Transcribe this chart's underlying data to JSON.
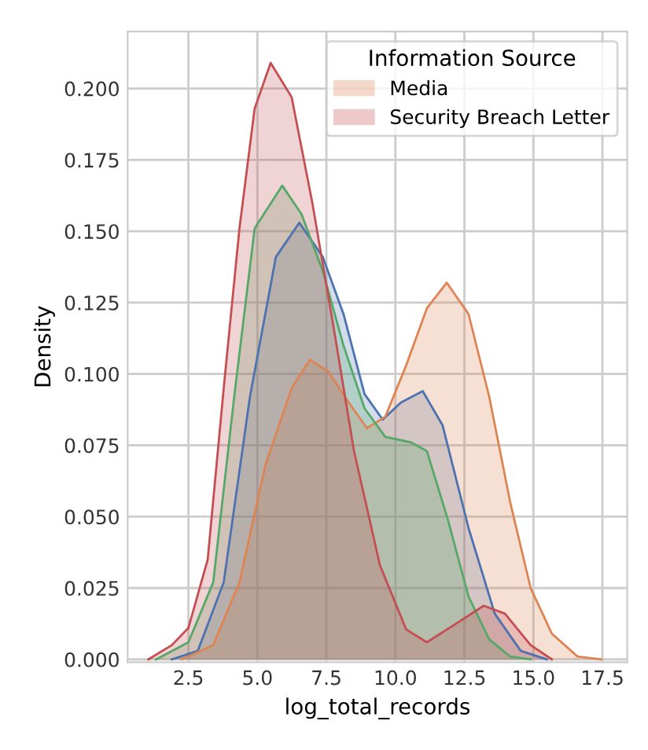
{
  "chart_data": {
    "type": "area",
    "xlabel": "log_total_records",
    "ylabel": "Density",
    "legend_title": "Information Source",
    "legend": "top right",
    "grid": true,
    "xlim": [
      0.3,
      18.4
    ],
    "ylim": [
      -0.001,
      0.22
    ],
    "xticks": [
      {
        "value": 2.5,
        "label": "2.5"
      },
      {
        "value": 5.0,
        "label": "5.0"
      },
      {
        "value": 7.5,
        "label": "7.5"
      },
      {
        "value": 10.0,
        "label": "10.0"
      },
      {
        "value": 12.5,
        "label": "12.5"
      },
      {
        "value": 15.0,
        "label": "15.0"
      },
      {
        "value": 17.5,
        "label": "17.5"
      }
    ],
    "yticks": [
      {
        "value": 0,
        "label": "0.000"
      },
      {
        "value": 0.025,
        "label": "0.025"
      },
      {
        "value": 0.05,
        "label": "0.050"
      },
      {
        "value": 0.075,
        "label": "0.075"
      },
      {
        "value": 0.1,
        "label": "0.100"
      },
      {
        "value": 0.125,
        "label": "0.125"
      },
      {
        "value": 0.15,
        "label": "0.150"
      },
      {
        "value": 0.175,
        "label": "0.175"
      },
      {
        "value": 0.2,
        "label": "0.200"
      }
    ],
    "series": [
      {
        "color": "#4c72b0",
        "x": [
          1.9,
          2.84,
          3.78,
          4.73,
          5.67,
          6.52,
          7.37,
          8.12,
          8.88,
          9.54,
          10.2,
          10.99,
          11.71,
          12.65,
          13.6,
          14.54,
          15.48
        ],
        "values": [
          0,
          0.003,
          0.027,
          0.092,
          0.141,
          0.153,
          0.141,
          0.121,
          0.093,
          0.084,
          0.09,
          0.094,
          0.082,
          0.046,
          0.016,
          0.003,
          0
        ]
      },
      {
        "name": "Media",
        "color": "#dd8452",
        "x": [
          2.27,
          3.4,
          4.35,
          5.29,
          6.24,
          6.9,
          7.56,
          8.31,
          8.97,
          9.63,
          10.39,
          11.14,
          11.86,
          12.65,
          13.4,
          14.16,
          14.9,
          15.67,
          16.6,
          17.46
        ],
        "values": [
          0,
          0.005,
          0.027,
          0.068,
          0.095,
          0.105,
          0.101,
          0.09,
          0.081,
          0.085,
          0.103,
          0.123,
          0.132,
          0.121,
          0.092,
          0.055,
          0.025,
          0.009,
          0.001,
          0
        ]
      },
      {
        "color": "#55a868",
        "x": [
          1.33,
          2.5,
          3.4,
          4.16,
          4.9,
          5.9,
          6.6,
          7.37,
          8.12,
          8.88,
          9.63,
          10.58,
          11.14,
          11.9,
          12.65,
          13.4,
          14.16,
          14.9
        ],
        "values": [
          0,
          0.006,
          0.027,
          0.092,
          0.151,
          0.166,
          0.156,
          0.136,
          0.11,
          0.088,
          0.078,
          0.076,
          0.073,
          0.049,
          0.022,
          0.007,
          0.001,
          0
        ]
      },
      {
        "name": "Security Breach Letter",
        "color": "#c44e52",
        "x": [
          1.05,
          1.9,
          2.5,
          3.2,
          3.78,
          4.35,
          4.9,
          5.48,
          6.24,
          6.99,
          7.75,
          8.5,
          9.44,
          10.39,
          11.14,
          12.27,
          13.2,
          13.97,
          14.9,
          15.67
        ],
        "values": [
          0,
          0.005,
          0.011,
          0.035,
          0.095,
          0.151,
          0.193,
          0.209,
          0.197,
          0.16,
          0.117,
          0.073,
          0.033,
          0.0105,
          0.006,
          0.013,
          0.0188,
          0.016,
          0.005,
          0
        ]
      }
    ]
  }
}
